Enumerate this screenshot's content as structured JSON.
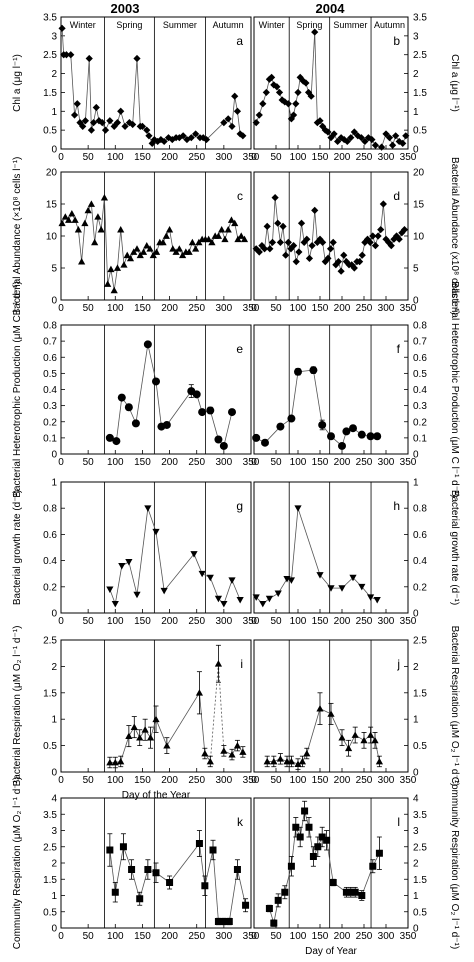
{
  "years": [
    "2003",
    "2004"
  ],
  "seasons": [
    "Winter",
    "Spring",
    "Summer",
    "Autumn"
  ],
  "xlabel": "Day of the Year",
  "xlabel_last": "Day of Year",
  "xticks": [
    "0",
    "50",
    "100",
    "150",
    "200",
    "250",
    "300",
    "350"
  ],
  "rows": [
    {
      "key": "chl",
      "ylabel": "Chl a (μg l⁻¹)",
      "yticks": [
        "0",
        "0.5",
        "1",
        "1.5",
        "2",
        "2.5",
        "3",
        "3.5"
      ]
    },
    {
      "key": "ba",
      "ylabel": "Bacterial Abundance (×10⁸ cells l⁻¹)",
      "ylabel_right": "Bacterial Abundance (x10⁸ cells l⁻¹)",
      "yticks": [
        "0",
        "5",
        "10",
        "15",
        "20"
      ]
    },
    {
      "key": "bhp",
      "ylabel": "Bacterial Heterotrophic Production (μM C l⁻¹ d⁻¹)",
      "yticks": [
        "0",
        "0.1",
        "0.2",
        "0.3",
        "0.4",
        "0.5",
        "0.6",
        "0.7",
        "0.8"
      ]
    },
    {
      "key": "bgr",
      "ylabel": "Bacterial growth rate (d⁻¹)",
      "yticks": [
        "0",
        "0.2",
        "0.4",
        "0.6",
        "0.8",
        "1"
      ]
    },
    {
      "key": "br",
      "ylabel": "Bacterial Respiration (μM O₂ l⁻¹ d⁻¹)",
      "yticks": [
        "0",
        "0.5",
        "1",
        "1.5",
        "2",
        "2.5"
      ]
    },
    {
      "key": "cr",
      "ylabel": "Community Respiration (μM O₂ l⁻¹ d⁻¹)",
      "yticks": [
        "0",
        "0.5",
        "1",
        "1.5",
        "2",
        "2.5",
        "3",
        "3.5",
        "4"
      ]
    }
  ],
  "chart_data": [
    {
      "panel": "a",
      "year": "2003",
      "type": "line",
      "marker": "diamond",
      "title": "",
      "xlabel": "",
      "ylabel": "Chl a",
      "xlim": [
        0,
        350
      ],
      "ylim": [
        0,
        3.5
      ],
      "season_lines": [
        80,
        172,
        266
      ],
      "dotted_segments": [],
      "x": [
        2,
        5,
        10,
        18,
        25,
        30,
        35,
        40,
        45,
        52,
        56,
        60,
        65,
        70,
        76,
        82,
        90,
        98,
        104,
        110,
        118,
        126,
        132,
        140,
        146,
        150,
        158,
        162,
        168,
        172,
        178,
        184,
        190,
        198,
        205,
        212,
        218,
        225,
        232,
        240,
        248,
        256,
        262,
        268,
        300,
        308,
        315,
        320,
        325,
        330,
        335
      ],
      "y": [
        3.2,
        2.5,
        2.5,
        2.5,
        0.9,
        1.2,
        0.7,
        0.6,
        0.75,
        2.4,
        0.5,
        0.7,
        1.1,
        0.75,
        0.7,
        0.5,
        0.75,
        0.6,
        0.7,
        1.0,
        0.6,
        0.7,
        0.65,
        2.4,
        0.6,
        0.6,
        0.5,
        0.35,
        0.15,
        0.25,
        0.2,
        0.25,
        0.2,
        0.3,
        0.25,
        0.3,
        0.3,
        0.35,
        0.25,
        0.3,
        0.4,
        0.3,
        0.3,
        0.25,
        0.7,
        0.8,
        0.6,
        1.4,
        1.0,
        0.4,
        0.35
      ]
    },
    {
      "panel": "b",
      "year": "2004",
      "type": "line",
      "marker": "diamond",
      "title": "",
      "xlabel": "",
      "ylabel": "Chl a",
      "xlim": [
        0,
        350
      ],
      "ylim": [
        0,
        3.5
      ],
      "season_lines": [
        80,
        172,
        266
      ],
      "dotted_segments": [
        [
          100,
          130
        ],
        [
          130,
          140
        ]
      ],
      "x": [
        5,
        12,
        20,
        28,
        35,
        40,
        45,
        52,
        58,
        64,
        70,
        78,
        85,
        90,
        95,
        100,
        105,
        112,
        118,
        124,
        130,
        138,
        144,
        150,
        156,
        162,
        168,
        175,
        182,
        190,
        198,
        205,
        212,
        220,
        228,
        236,
        244,
        252,
        260,
        268,
        276,
        290,
        300,
        308,
        315,
        322,
        330,
        338,
        345
      ],
      "y": [
        0.7,
        0.9,
        1.2,
        1.5,
        1.85,
        1.9,
        1.7,
        1.65,
        1.5,
        1.3,
        1.25,
        1.2,
        0.8,
        0.9,
        1.2,
        1.5,
        1.9,
        1.8,
        1.75,
        1.5,
        1.4,
        3.1,
        0.7,
        0.75,
        0.6,
        0.5,
        0.45,
        0.3,
        0.4,
        0.2,
        0.3,
        0.25,
        0.2,
        0.3,
        0.45,
        0.35,
        0.3,
        0.2,
        0.3,
        0.25,
        0.1,
        0.05,
        0.4,
        0.3,
        0.1,
        0.35,
        0.2,
        0.15,
        0.35
      ]
    },
    {
      "panel": "c",
      "year": "2003",
      "type": "line",
      "marker": "triangle-up",
      "title": "",
      "xlabel": "",
      "ylabel": "Bacterial Abundance",
      "xlim": [
        0,
        350
      ],
      "ylim": [
        0,
        20
      ],
      "season_lines": [
        80,
        172,
        266
      ],
      "dotted_segments": [],
      "x": [
        2,
        8,
        14,
        20,
        26,
        32,
        38,
        44,
        50,
        56,
        62,
        68,
        74,
        80,
        86,
        92,
        98,
        104,
        110,
        116,
        122,
        128,
        134,
        140,
        146,
        152,
        158,
        164,
        170,
        176,
        182,
        188,
        194,
        200,
        206,
        212,
        218,
        224,
        230,
        236,
        242,
        248,
        254,
        260,
        266,
        272,
        278,
        284,
        290,
        296,
        302,
        308,
        314,
        320,
        326,
        332,
        338
      ],
      "y": [
        12,
        13,
        12.5,
        13.5,
        12.5,
        11,
        6,
        12,
        14,
        15,
        9,
        13,
        11,
        16,
        2.5,
        4.8,
        1.5,
        5,
        11,
        5.5,
        7,
        6.5,
        7.5,
        8,
        7,
        7.5,
        8.5,
        8,
        7,
        7.5,
        9,
        9,
        10,
        11,
        8,
        7.5,
        8,
        7,
        7.5,
        7.5,
        9,
        8,
        9,
        9.5,
        9.5,
        9.5,
        9,
        10,
        10,
        11,
        9.5,
        11,
        12.5,
        12,
        9.5,
        10,
        9.5
      ]
    },
    {
      "panel": "d",
      "year": "2004",
      "type": "line",
      "marker": "diamond",
      "title": "",
      "xlabel": "",
      "ylabel": "Bacterial Abundance",
      "xlim": [
        0,
        350
      ],
      "ylim": [
        0,
        20
      ],
      "season_lines": [
        80,
        172,
        266
      ],
      "dotted_segments": [],
      "x": [
        5,
        12,
        18,
        24,
        30,
        36,
        42,
        48,
        54,
        60,
        66,
        72,
        78,
        84,
        90,
        96,
        102,
        108,
        114,
        120,
        126,
        132,
        138,
        144,
        150,
        156,
        162,
        168,
        174,
        180,
        186,
        192,
        198,
        204,
        210,
        216,
        222,
        228,
        234,
        240,
        246,
        252,
        258,
        264,
        270,
        276,
        282,
        288,
        294,
        300,
        306,
        312,
        318,
        324,
        330,
        336,
        342
      ],
      "y": [
        8,
        7.5,
        8.5,
        8,
        11.5,
        8,
        9,
        16,
        12,
        9,
        11.5,
        7,
        9,
        8,
        8.5,
        6,
        7.5,
        12,
        9,
        9.5,
        6.5,
        8.5,
        14,
        9,
        9.5,
        9,
        6,
        6.5,
        8,
        9,
        5.5,
        6,
        4.5,
        7,
        6,
        5.5,
        5.5,
        5,
        6,
        6,
        7,
        9,
        9.5,
        9,
        10,
        8.5,
        10,
        11,
        15,
        9.5,
        9,
        8.5,
        9.5,
        10,
        9.5,
        10.5,
        11
      ]
    },
    {
      "panel": "e",
      "year": "2003",
      "type": "line",
      "marker": "circle",
      "title": "",
      "xlabel": "",
      "ylabel": "Bacterial Heterotrophic Production",
      "xlim": [
        0,
        350
      ],
      "ylim": [
        0,
        0.8
      ],
      "season_lines": [
        80,
        172,
        266
      ],
      "dotted_segments": [],
      "x": [
        90,
        102,
        112,
        125,
        138,
        160,
        175,
        185,
        195,
        240,
        250,
        260,
        275,
        290,
        300,
        315
      ],
      "y": [
        0.1,
        0.08,
        0.35,
        0.29,
        0.19,
        0.68,
        0.45,
        0.17,
        0.18,
        0.39,
        0.37,
        0.26,
        0.27,
        0.09,
        0.05,
        0.26
      ],
      "error": [
        0,
        0,
        0,
        0,
        0,
        0,
        0,
        0,
        0,
        0.04,
        0,
        0,
        0.02,
        0,
        0,
        0
      ]
    },
    {
      "panel": "f",
      "year": "2004",
      "type": "line",
      "marker": "circle",
      "title": "",
      "xlabel": "",
      "ylabel": "Bacterial Heterotrophic Production",
      "xlim": [
        0,
        350
      ],
      "ylim": [
        0,
        0.8
      ],
      "season_lines": [
        80,
        172,
        266
      ],
      "dotted_segments": [],
      "x": [
        5,
        25,
        60,
        85,
        100,
        135,
        155,
        175,
        200,
        210,
        225,
        245,
        265,
        280
      ],
      "y": [
        0.1,
        0.07,
        0.17,
        0.22,
        0.51,
        0.52,
        0.18,
        0.11,
        0.05,
        0.14,
        0.16,
        0.12,
        0.11,
        0.11
      ],
      "error": [
        0,
        0,
        0,
        0,
        0.02,
        0.02,
        0.03,
        0,
        0,
        0,
        0,
        0,
        0,
        0
      ]
    },
    {
      "panel": "g",
      "year": "2003",
      "type": "line",
      "marker": "triangle-down",
      "title": "",
      "xlabel": "",
      "ylabel": "Bacterial growth rate",
      "xlim": [
        0,
        350
      ],
      "ylim": [
        0,
        1
      ],
      "season_lines": [
        80,
        172,
        266
      ],
      "dotted_segments": [],
      "x": [
        90,
        100,
        112,
        125,
        140,
        160,
        175,
        190,
        245,
        260,
        275,
        290,
        300,
        315,
        330
      ],
      "y": [
        0.18,
        0.07,
        0.36,
        0.39,
        0.14,
        0.8,
        0.62,
        0.17,
        0.45,
        0.3,
        0.27,
        0.11,
        0.07,
        0.25,
        0.1
      ],
      "error": [
        0,
        0,
        0,
        0,
        0,
        0,
        0,
        0,
        0,
        0,
        0,
        0,
        0,
        0,
        0
      ]
    },
    {
      "panel": "h",
      "year": "2004",
      "type": "line",
      "marker": "triangle-down",
      "title": "",
      "xlabel": "",
      "ylabel": "Bacterial growth rate",
      "xlim": [
        0,
        350
      ],
      "ylim": [
        0,
        1
      ],
      "season_lines": [
        80,
        172,
        266
      ],
      "dotted_segments": [],
      "x": [
        5,
        20,
        35,
        55,
        75,
        85,
        100,
        150,
        175,
        200,
        225,
        245,
        265,
        280
      ],
      "y": [
        0.12,
        0.07,
        0.11,
        0.15,
        0.26,
        0.25,
        0.8,
        0.29,
        0.19,
        0.19,
        0.27,
        0.2,
        0.12,
        0.1
      ],
      "error": [
        0,
        0,
        0,
        0,
        0,
        0,
        0,
        0,
        0,
        0,
        0,
        0,
        0,
        0
      ]
    },
    {
      "panel": "i",
      "year": "2003",
      "type": "line",
      "marker": "triangle-up",
      "title": "",
      "xlabel": "Day of the Year",
      "ylabel": "Bacterial Respiration",
      "xlim": [
        0,
        350
      ],
      "ylim": [
        0,
        2.5
      ],
      "season_lines": [
        80,
        172,
        350
      ],
      "dotted_segments": [
        [
          275,
          290
        ],
        [
          290,
          300
        ]
      ],
      "x": [
        90,
        100,
        110,
        125,
        135,
        145,
        155,
        165,
        175,
        195,
        255,
        265,
        275,
        290,
        300,
        315,
        325,
        335
      ],
      "y": [
        0.18,
        0.18,
        0.2,
        0.68,
        0.85,
        0.65,
        0.8,
        0.65,
        1.0,
        0.5,
        1.5,
        0.35,
        0.2,
        2.05,
        0.4,
        0.33,
        0.5,
        0.38
      ],
      "error": [
        0.1,
        0.1,
        0.1,
        0.2,
        0.2,
        0.15,
        0.2,
        0.2,
        0.25,
        0.15,
        0.4,
        0.1,
        0.1,
        0.35,
        0.1,
        0.1,
        0.1,
        0.1
      ]
    },
    {
      "panel": "j",
      "year": "2004",
      "type": "line",
      "marker": "triangle-up",
      "title": "",
      "xlabel": "",
      "ylabel": "Bacterial Respiration",
      "xlim": [
        0,
        350
      ],
      "ylim": [
        0,
        2.5
      ],
      "season_lines": [
        80,
        172,
        266
      ],
      "dotted_segments": [],
      "x": [
        30,
        45,
        60,
        75,
        85,
        100,
        110,
        120,
        150,
        175,
        200,
        215,
        230,
        250,
        265,
        275,
        285
      ],
      "y": [
        0.2,
        0.2,
        0.25,
        0.2,
        0.2,
        0.15,
        0.2,
        0.35,
        1.2,
        1.1,
        0.65,
        0.45,
        0.7,
        0.6,
        0.7,
        0.6,
        0.2
      ],
      "error": [
        0.1,
        0.1,
        0.1,
        0.1,
        0.1,
        0.1,
        0.1,
        0.1,
        0.3,
        0.2,
        0.15,
        0.15,
        0.15,
        0.15,
        0.15,
        0.15,
        0.1
      ]
    },
    {
      "panel": "k",
      "year": "2003",
      "type": "line",
      "marker": "square",
      "title": "",
      "xlabel": "",
      "ylabel": "Community Respiration",
      "xlim": [
        0,
        350
      ],
      "ylim": [
        0,
        4
      ],
      "season_lines": [
        80,
        172,
        266
      ],
      "dotted_segments": [],
      "x": [
        90,
        100,
        115,
        130,
        145,
        160,
        175,
        200,
        255,
        265,
        280,
        290,
        300,
        310,
        325,
        340
      ],
      "y": [
        2.4,
        1.1,
        2.5,
        1.8,
        0.9,
        1.8,
        1.7,
        1.4,
        2.6,
        1.3,
        2.4,
        0.2,
        0.2,
        0.2,
        1.8,
        0.7
      ],
      "error": [
        0.5,
        0.3,
        0.4,
        0.3,
        0.2,
        0.3,
        0.3,
        0.2,
        0.4,
        0.3,
        0.3,
        0.1,
        0.1,
        0.1,
        0.3,
        0.2
      ]
    },
    {
      "panel": "l",
      "year": "2004",
      "type": "line",
      "marker": "square",
      "title": "",
      "xlabel": "Day of Year",
      "ylabel": "Community Respiration",
      "xlim": [
        0,
        350
      ],
      "ylim": [
        0,
        4
      ],
      "season_lines": [
        80,
        172,
        266
      ],
      "dotted_segments": [],
      "x": [
        35,
        45,
        55,
        70,
        85,
        95,
        105,
        115,
        125,
        135,
        145,
        155,
        165,
        180,
        210,
        220,
        230,
        245,
        270,
        285
      ],
      "y": [
        0.6,
        0.15,
        0.85,
        1.1,
        1.9,
        3.1,
        2.8,
        3.6,
        3.1,
        2.2,
        2.5,
        2.8,
        2.7,
        1.4,
        1.1,
        1.1,
        1.1,
        1.0,
        1.9,
        2.3
      ],
      "error": [
        0.1,
        0.1,
        0.2,
        0.2,
        0.3,
        0.3,
        0.3,
        0.3,
        0.3,
        0.3,
        0.3,
        0.3,
        0.3,
        0.1,
        0.15,
        0.15,
        0.15,
        0.15,
        0.2,
        0.5
      ]
    }
  ],
  "panel_letters": [
    "a",
    "b",
    "c",
    "d",
    "e",
    "f",
    "g",
    "h",
    "i",
    "j",
    "k",
    "l"
  ],
  "colors": {
    "ink": "#000000",
    "background": "#ffffff"
  }
}
